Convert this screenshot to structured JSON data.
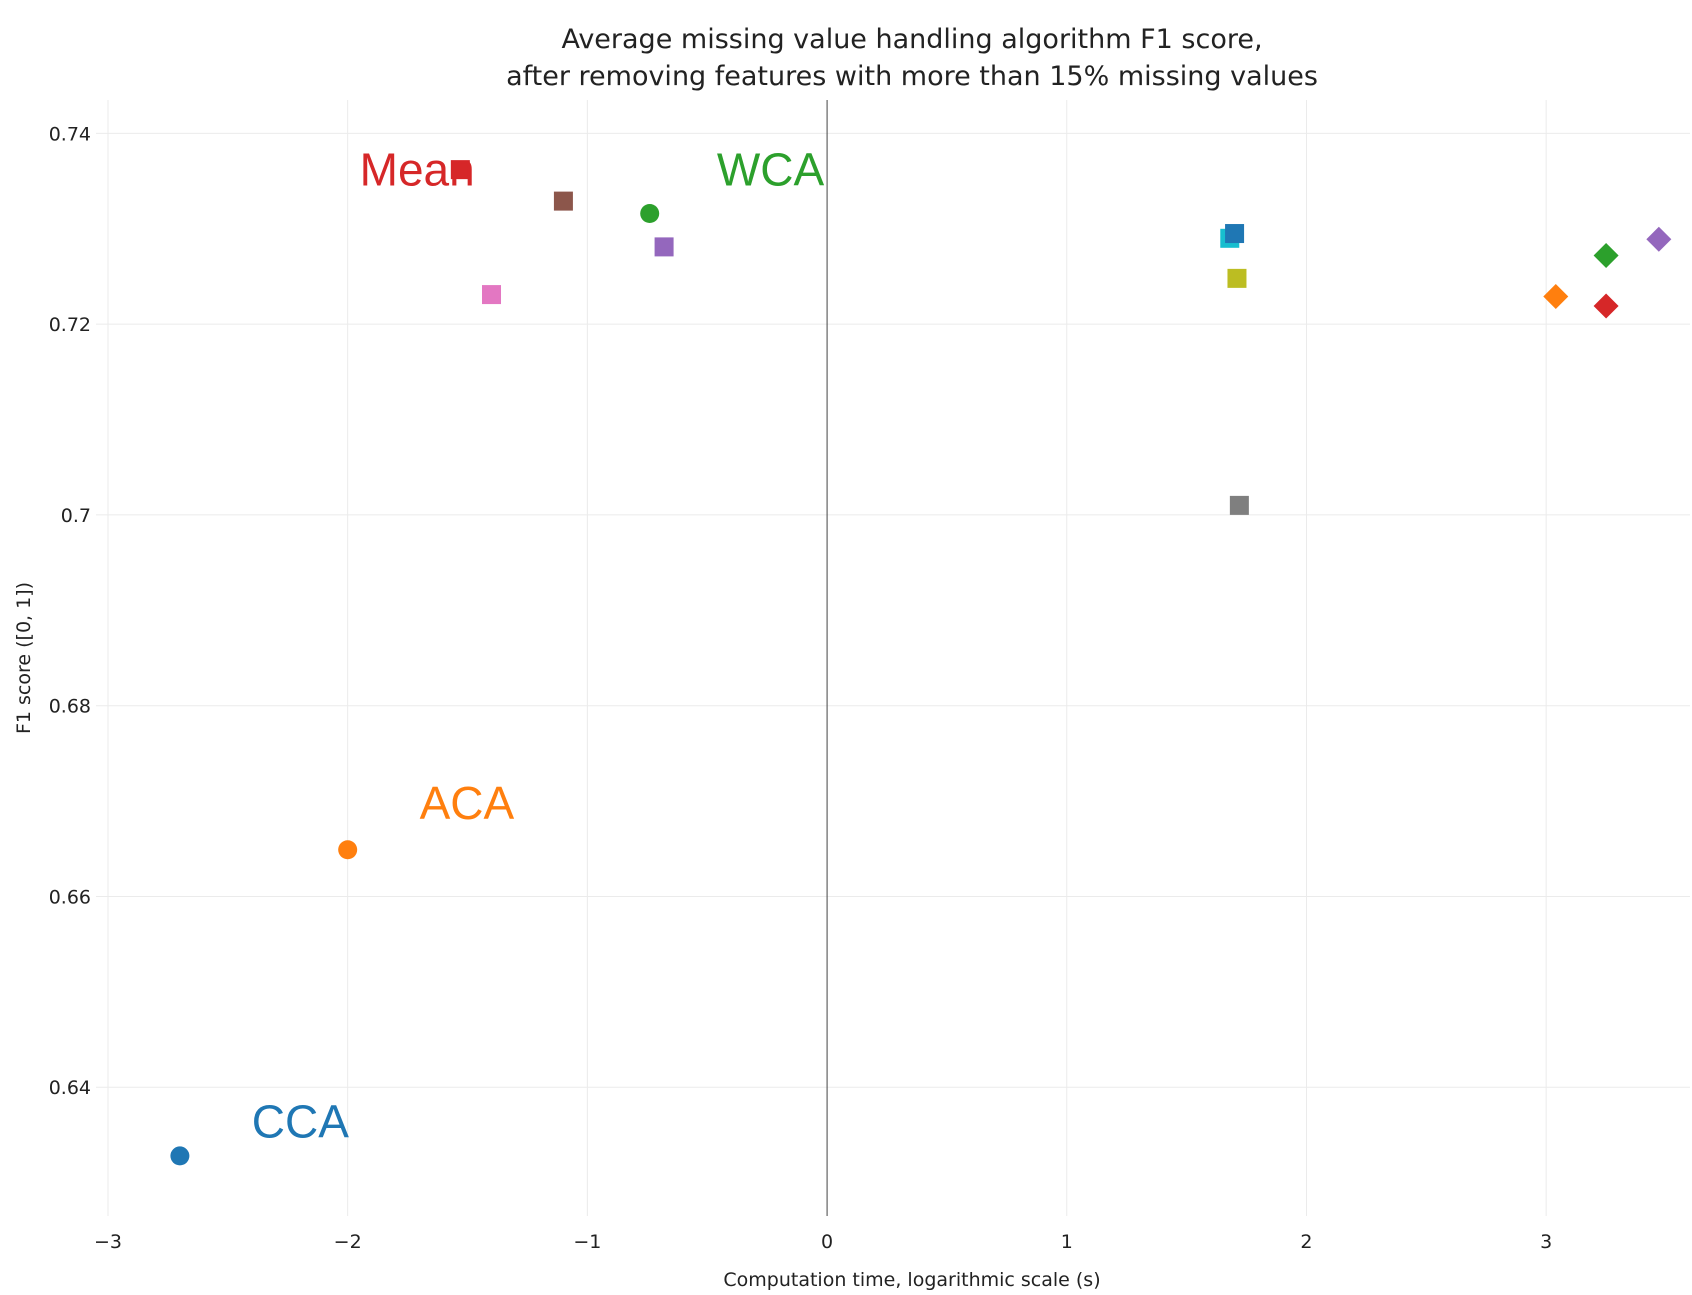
{
  "chart_data": {
    "type": "scatter",
    "title": "Average missing value handling algorithm F1 score,",
    "subtitle": "after removing features with more than 15% missing values",
    "xlabel": "Computation time, logarithmic scale (s)",
    "ylabel": "F1 score ([0, 1])",
    "xlim": [
      -3.05,
      3.6
    ],
    "ylim": [
      0.6265,
      0.7435
    ],
    "grid": true,
    "x_ticks": [
      -3,
      -2,
      -1,
      0,
      1,
      2,
      3
    ],
    "x_tick_labels": [
      "−3",
      "−2",
      "−1",
      "0",
      "1",
      "2",
      "3"
    ],
    "y_ticks": [
      0.64,
      0.66,
      0.68,
      0.7,
      0.72,
      0.74
    ],
    "y_tick_labels": [
      "0.64",
      "0.66",
      "0.68",
      "0.7",
      "0.72",
      "0.74"
    ],
    "points": [
      {
        "x": -2.7,
        "y": 0.6328,
        "color": "#1f77b4",
        "symbol": "circle"
      },
      {
        "x": -2.0,
        "y": 0.6649,
        "color": "#ff7f0e",
        "symbol": "circle"
      },
      {
        "x": -0.74,
        "y": 0.7316,
        "color": "#2ca02c",
        "symbol": "circle"
      },
      {
        "x": -1.53,
        "y": 0.7362,
        "color": "#d62728",
        "symbol": "square"
      },
      {
        "x": -1.1,
        "y": 0.7329,
        "color": "#8c564b",
        "symbol": "square"
      },
      {
        "x": -0.68,
        "y": 0.7281,
        "color": "#9467bd",
        "symbol": "square"
      },
      {
        "x": -1.4,
        "y": 0.7231,
        "color": "#e377c2",
        "symbol": "square"
      },
      {
        "x": 1.68,
        "y": 0.729,
        "color": "#17becf",
        "symbol": "square"
      },
      {
        "x": 1.7,
        "y": 0.7295,
        "color": "#1f77b4",
        "symbol": "square"
      },
      {
        "x": 1.71,
        "y": 0.7248,
        "color": "#bcbd22",
        "symbol": "square"
      },
      {
        "x": 1.72,
        "y": 0.701,
        "color": "#7f7f7f",
        "symbol": "square"
      },
      {
        "x": 3.04,
        "y": 0.7229,
        "color": "#ff7f0e",
        "symbol": "diamond"
      },
      {
        "x": 3.25,
        "y": 0.7272,
        "color": "#2ca02c",
        "symbol": "diamond"
      },
      {
        "x": 3.25,
        "y": 0.7219,
        "color": "#d62728",
        "symbol": "diamond"
      },
      {
        "x": 3.47,
        "y": 0.7289,
        "color": "#9467bd",
        "symbol": "diamond"
      }
    ],
    "annotations": [
      {
        "text": "Mean",
        "x": -1.95,
        "y": 0.7362,
        "color": "#d62728"
      },
      {
        "text": "WCA",
        "x": -0.46,
        "y": 0.7362,
        "color": "#2ca02c"
      },
      {
        "text": "ACA",
        "x": -1.7,
        "y": 0.6698,
        "color": "#ff7f0e"
      },
      {
        "text": "CCA",
        "x": -2.4,
        "y": 0.6364,
        "color": "#1f77b4"
      }
    ],
    "colors": {
      "grid": "#ebebeb",
      "zero_line": "#444444",
      "text": "#222222"
    }
  }
}
